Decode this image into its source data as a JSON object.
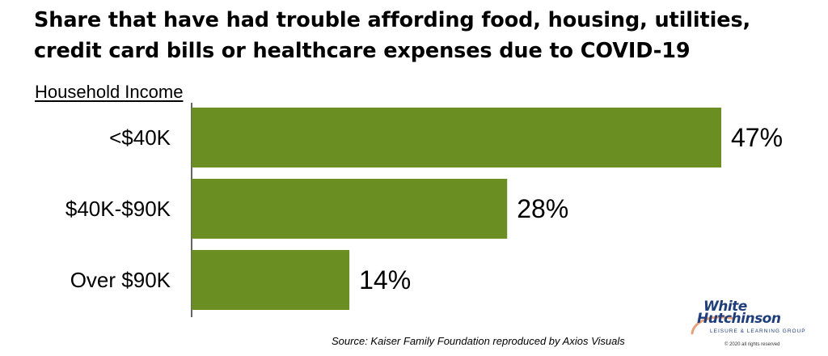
{
  "chart_data": {
    "type": "bar",
    "orientation": "horizontal",
    "title_lines": [
      "Share that have had trouble affording food, housing, utilities,",
      "credit card bills or healthcare expenses due to COVID-19"
    ],
    "axis_title": "Household Income",
    "categories": [
      "<$40K",
      "$40K-$90K",
      "Over $90K"
    ],
    "values": [
      47,
      28,
      14
    ],
    "value_labels": [
      "47%",
      "28%",
      "14%"
    ],
    "xlim": [
      0,
      50
    ],
    "grid": false,
    "legend": "none",
    "bar_color": "#6b8e23"
  },
  "source": "Source: Kaiser Family Foundation reproduced by Axios Visuals",
  "logo": {
    "line1": "White",
    "line2": "Hutchinson",
    "tagline": "LEISURE & LEARNING GROUP",
    "copyright": "© 2020 all rights reserved",
    "colors": {
      "text": "#1f3f7a",
      "swoosh": "#e8a07a"
    }
  }
}
